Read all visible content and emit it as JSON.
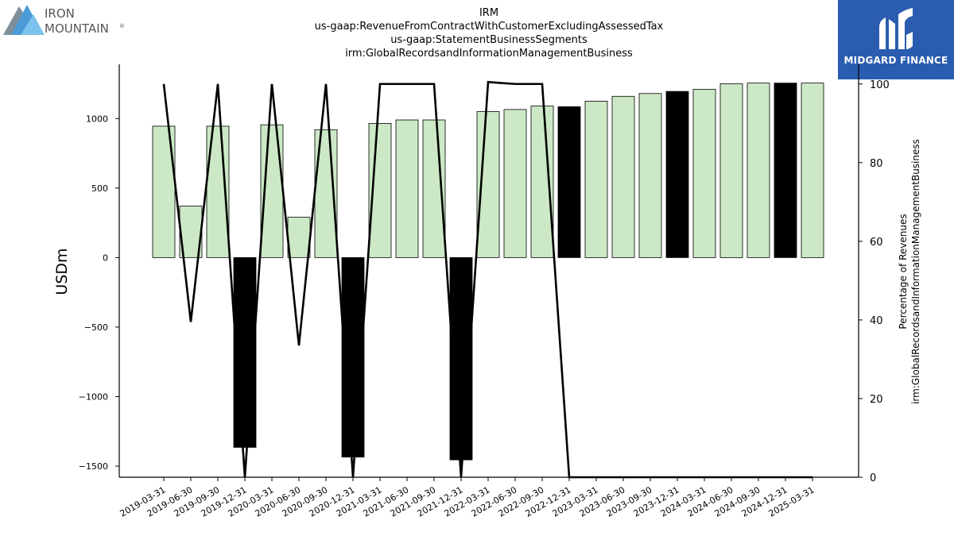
{
  "brand_left": {
    "line1": "IRON",
    "line2": "MOUNTAIN",
    "mark": "®"
  },
  "brand_right": {
    "name": "MIDGARD FINANCE"
  },
  "colors": {
    "bar_positive": "#cce8c6",
    "bar_highlight": "#000000",
    "line": "#000000",
    "brand_blue": "#2a5cb0"
  },
  "chart_data": {
    "type": "bar",
    "title_lines": [
      "IRM",
      "us-gaap:RevenueFromContractWithCustomerExcludingAssessedTax",
      "us-gaap:StatementBusinessSegments",
      "irm:GlobalRecordsandInformationManagementBusiness"
    ],
    "ylabel": "USDm",
    "y2label_lines": [
      "Percentage of Revenues",
      "irm:GlobalRecordsandInformationManagementBusiness"
    ],
    "ylim": [
      -1580,
      1390
    ],
    "y2lim": [
      0,
      105
    ],
    "yticks": [
      -1500,
      -1000,
      -500,
      0,
      500,
      1000
    ],
    "y2ticks": [
      0,
      20,
      40,
      60,
      80,
      100
    ],
    "grid": false,
    "categories": [
      "2019-03-31",
      "2019-06-30",
      "2019-09-30",
      "2019-12-31",
      "2020-03-31",
      "2020-06-30",
      "2020-09-30",
      "2020-12-31",
      "2021-03-31",
      "2021-06-30",
      "2021-09-30",
      "2021-12-31",
      "2022-03-31",
      "2022-06-30",
      "2022-09-30",
      "2022-12-31",
      "2023-03-31",
      "2023-06-30",
      "2023-09-30",
      "2023-12-31",
      "2024-03-31",
      "2024-06-30",
      "2024-09-30",
      "2024-12-31",
      "2025-03-31"
    ],
    "series": [
      {
        "kind": "bar",
        "values": [
          945,
          370,
          945,
          -1365,
          955,
          290,
          920,
          -1435,
          965,
          990,
          990,
          -1455,
          1050,
          1065,
          1090,
          1085,
          1125,
          1160,
          1180,
          1195,
          1210,
          1250,
          1255,
          1255,
          1255
        ],
        "highlight": [
          false,
          false,
          false,
          true,
          false,
          false,
          false,
          true,
          false,
          false,
          false,
          true,
          false,
          false,
          false,
          true,
          false,
          false,
          false,
          true,
          false,
          false,
          false,
          true,
          false
        ]
      },
      {
        "kind": "line",
        "axis": "right",
        "values": [
          100,
          39.5,
          100,
          0,
          100,
          33.5,
          100,
          0,
          100,
          100,
          100,
          0,
          100.5,
          100,
          100,
          0,
          0,
          0,
          0,
          0,
          0,
          0,
          0,
          0,
          0
        ]
      }
    ]
  }
}
